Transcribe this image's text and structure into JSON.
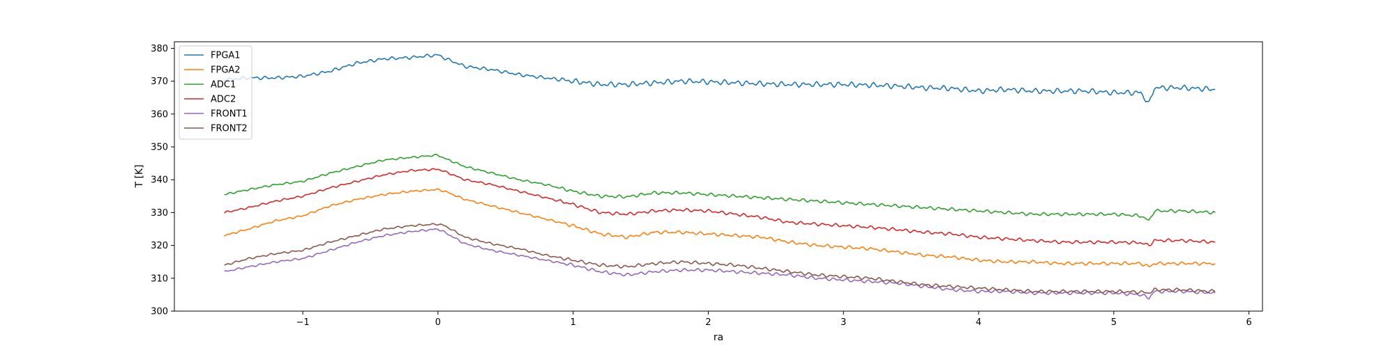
{
  "chart_data": {
    "type": "line",
    "title": "",
    "xlabel": "ra",
    "ylabel": "T [K]",
    "xlim": [
      -1.95,
      6.1
    ],
    "ylim": [
      300,
      382
    ],
    "xticks": [
      -1,
      0,
      1,
      2,
      3,
      4,
      5,
      6
    ],
    "xtick_labels": [
      "−1",
      "0",
      "1",
      "2",
      "3",
      "4",
      "5",
      "6"
    ],
    "yticks": [
      300,
      310,
      320,
      330,
      340,
      350,
      360,
      370,
      380
    ],
    "ytick_labels": [
      "300",
      "310",
      "320",
      "330",
      "340",
      "350",
      "360",
      "370",
      "380"
    ],
    "grid": false,
    "legend_position": "top-left",
    "series": [
      {
        "name": "FPGA1",
        "color": "#1f77b4",
        "x": [
          -1.58,
          -1.4,
          -1.2,
          -1.0,
          -0.8,
          -0.6,
          -0.4,
          -0.2,
          0.0,
          0.05,
          0.2,
          0.4,
          0.6,
          0.8,
          1.0,
          1.2,
          1.4,
          1.6,
          1.8,
          2.0,
          2.2,
          2.4,
          2.6,
          2.8,
          3.0,
          3.2,
          3.4,
          3.6,
          3.8,
          4.0,
          4.2,
          4.4,
          4.6,
          4.8,
          5.0,
          5.2,
          5.26,
          5.3,
          5.5,
          5.75
        ],
        "y": [
          370.5,
          371.0,
          371.0,
          371.5,
          373.0,
          375.5,
          376.8,
          377.2,
          378.0,
          377.0,
          374.5,
          373.5,
          372.0,
          371.0,
          370.0,
          369.0,
          369.0,
          369.5,
          370.0,
          369.8,
          369.5,
          369.2,
          369.0,
          369.0,
          369.0,
          368.8,
          368.5,
          368.0,
          367.8,
          367.0,
          367.5,
          367.0,
          367.0,
          367.0,
          366.5,
          366.5,
          363.0,
          368.0,
          368.0,
          367.5
        ]
      },
      {
        "name": "FPGA2",
        "color": "#ff7f0e",
        "x": [
          -1.58,
          -1.4,
          -1.2,
          -1.0,
          -0.8,
          -0.6,
          -0.4,
          -0.2,
          0.0,
          0.05,
          0.2,
          0.4,
          0.6,
          0.8,
          1.0,
          1.2,
          1.4,
          1.6,
          1.8,
          2.0,
          2.2,
          2.4,
          2.6,
          2.8,
          3.0,
          3.2,
          3.4,
          3.6,
          3.8,
          4.0,
          4.2,
          4.4,
          4.6,
          4.8,
          5.0,
          5.2,
          5.26,
          5.3,
          5.5,
          5.75
        ],
        "y": [
          323.0,
          325.0,
          327.5,
          329.0,
          332.0,
          334.0,
          335.5,
          336.5,
          337.0,
          336.5,
          334.0,
          332.0,
          330.0,
          328.0,
          326.0,
          323.5,
          322.5,
          324.0,
          324.0,
          323.5,
          323.0,
          322.5,
          321.0,
          320.0,
          319.5,
          319.0,
          318.0,
          317.0,
          316.5,
          315.5,
          315.0,
          315.0,
          314.5,
          314.5,
          314.5,
          314.5,
          313.5,
          314.5,
          314.5,
          314.5
        ]
      },
      {
        "name": "ADC1",
        "color": "#2ca02c",
        "x": [
          -1.58,
          -1.4,
          -1.2,
          -1.0,
          -0.8,
          -0.6,
          -0.4,
          -0.2,
          0.0,
          0.05,
          0.2,
          0.4,
          0.6,
          0.8,
          1.0,
          1.2,
          1.4,
          1.6,
          1.8,
          2.0,
          2.2,
          2.4,
          2.6,
          2.8,
          3.0,
          3.2,
          3.4,
          3.6,
          3.8,
          4.0,
          4.2,
          4.4,
          4.6,
          4.8,
          5.0,
          5.2,
          5.26,
          5.3,
          5.5,
          5.75
        ],
        "y": [
          335.5,
          337.0,
          338.5,
          339.5,
          342.0,
          344.0,
          346.0,
          346.8,
          347.5,
          346.5,
          344.0,
          342.0,
          340.0,
          338.5,
          336.5,
          335.0,
          334.8,
          336.0,
          336.0,
          335.5,
          335.0,
          334.5,
          334.0,
          333.5,
          333.0,
          332.5,
          332.0,
          331.5,
          331.0,
          330.5,
          330.0,
          329.5,
          329.5,
          329.5,
          329.5,
          329.0,
          327.5,
          330.5,
          330.5,
          330.0
        ]
      },
      {
        "name": "ADC2",
        "color": "#d62728",
        "x": [
          -1.58,
          -1.4,
          -1.2,
          -1.0,
          -0.8,
          -0.6,
          -0.4,
          -0.2,
          0.0,
          0.05,
          0.2,
          0.4,
          0.6,
          0.8,
          1.0,
          1.2,
          1.4,
          1.6,
          1.8,
          2.0,
          2.2,
          2.4,
          2.6,
          2.8,
          3.0,
          3.2,
          3.4,
          3.6,
          3.8,
          4.0,
          4.2,
          4.4,
          4.6,
          4.8,
          5.0,
          5.2,
          5.26,
          5.3,
          5.5,
          5.75
        ],
        "y": [
          330.0,
          331.5,
          333.5,
          335.0,
          337.5,
          339.5,
          341.5,
          342.8,
          343.2,
          342.5,
          340.0,
          338.5,
          336.5,
          334.5,
          332.5,
          330.0,
          329.5,
          330.5,
          330.8,
          330.5,
          329.5,
          328.5,
          327.0,
          326.5,
          326.0,
          325.5,
          324.8,
          324.0,
          323.5,
          322.5,
          322.0,
          321.5,
          321.0,
          321.0,
          321.0,
          320.8,
          320.0,
          321.5,
          321.5,
          321.0
        ]
      },
      {
        "name": "FRONT1",
        "color": "#9467bd",
        "x": [
          -1.58,
          -1.4,
          -1.2,
          -1.0,
          -0.8,
          -0.6,
          -0.4,
          -0.2,
          0.0,
          0.05,
          0.2,
          0.4,
          0.6,
          0.8,
          1.0,
          1.2,
          1.4,
          1.6,
          1.8,
          2.0,
          2.2,
          2.4,
          2.6,
          2.8,
          3.0,
          3.2,
          3.4,
          3.6,
          3.8,
          4.0,
          4.2,
          4.4,
          4.6,
          4.8,
          5.0,
          5.2,
          5.26,
          5.3,
          5.5,
          5.75
        ],
        "y": [
          312.0,
          313.5,
          315.0,
          316.0,
          318.5,
          321.0,
          323.0,
          324.2,
          325.0,
          324.0,
          320.5,
          318.5,
          317.0,
          315.5,
          314.0,
          312.0,
          311.0,
          312.0,
          312.5,
          312.5,
          312.0,
          311.5,
          311.0,
          310.0,
          309.5,
          309.0,
          308.5,
          307.5,
          306.5,
          306.0,
          306.0,
          305.5,
          305.5,
          305.5,
          305.5,
          305.0,
          304.0,
          306.0,
          306.0,
          305.5
        ]
      },
      {
        "name": "FRONT2",
        "color": "#8c564b",
        "x": [
          -1.58,
          -1.4,
          -1.2,
          -1.0,
          -0.8,
          -0.6,
          -0.4,
          -0.2,
          0.0,
          0.05,
          0.2,
          0.4,
          0.6,
          0.8,
          1.0,
          1.2,
          1.4,
          1.6,
          1.8,
          2.0,
          2.2,
          2.4,
          2.6,
          2.8,
          3.0,
          3.2,
          3.4,
          3.6,
          3.8,
          4.0,
          4.2,
          4.4,
          4.6,
          4.8,
          5.0,
          5.2,
          5.26,
          5.3,
          5.5,
          5.75
        ],
        "y": [
          314.0,
          316.0,
          317.5,
          318.5,
          321.0,
          323.0,
          325.0,
          326.0,
          326.5,
          326.0,
          322.5,
          320.5,
          319.0,
          317.0,
          315.5,
          314.0,
          313.5,
          314.5,
          315.0,
          314.5,
          314.0,
          313.0,
          312.0,
          311.0,
          310.5,
          310.0,
          309.0,
          308.0,
          307.5,
          307.0,
          306.5,
          306.0,
          306.0,
          306.0,
          306.0,
          305.8,
          305.5,
          306.5,
          306.5,
          306.0
        ]
      }
    ]
  }
}
